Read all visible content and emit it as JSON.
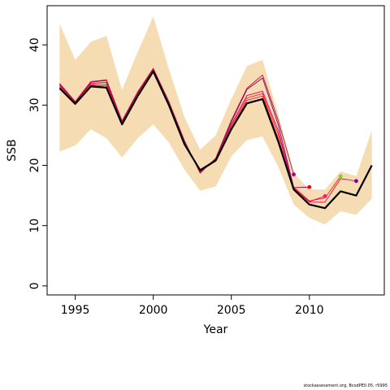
{
  "chart_data": {
    "type": "line",
    "title": "",
    "xlabel": "Year",
    "ylabel": "SSB",
    "xlim": [
      1993.2,
      2014.8
    ],
    "ylim": [
      -1.5,
      46.5
    ],
    "xticks": [
      1995,
      2000,
      2005,
      2010
    ],
    "yticks": [
      0,
      10,
      20,
      30,
      40
    ],
    "grid": false,
    "legend": "none",
    "colors": {
      "band": "#f5dcb3",
      "main": "#000000",
      "peel_lines": [
        "#f4004f",
        "#ff2200",
        "#d10070",
        "#7c0070",
        "#c01040"
      ],
      "peel_points": [
        "#b0008a",
        "#ff0000",
        "#ff1493",
        "#66dd22",
        "#7a00a0"
      ]
    },
    "band": {
      "name": "confidence interval",
      "x": [
        1994,
        1995,
        1996,
        1997,
        1998,
        1999,
        2000,
        2001,
        2002,
        2003,
        2004,
        2005,
        2006,
        2007,
        2008,
        2009,
        2010,
        2011,
        2012,
        2013,
        2014
      ],
      "upper": [
        43.5,
        37.5,
        40.5,
        41.5,
        32.5,
        38.8,
        44.7,
        36.0,
        28.0,
        22.6,
        25.0,
        31.0,
        36.5,
        37.5,
        28.5,
        18.7,
        16.0,
        16.0,
        19.0,
        18.2,
        25.8
      ],
      "lower": [
        22.3,
        23.3,
        26.0,
        24.5,
        21.3,
        24.5,
        26.8,
        23.8,
        19.3,
        15.8,
        16.5,
        21.5,
        24.2,
        24.8,
        19.8,
        13.5,
        11.3,
        10.2,
        12.4,
        11.8,
        14.5
      ]
    },
    "series": [
      {
        "x": [
          1994,
          1995,
          1996,
          1997,
          1998,
          1999,
          2000,
          2001,
          2002,
          2003,
          2004,
          2005,
          2006,
          2007,
          2008,
          2009,
          2010,
          2011,
          2012,
          2013,
          2014
        ],
        "values": [
          32.8,
          30.2,
          33.1,
          32.9,
          26.8,
          31.5,
          35.6,
          30.0,
          23.5,
          19.2,
          20.8,
          26.0,
          30.3,
          31.0,
          24.0,
          16.0,
          13.5,
          12.9,
          15.7,
          15.0,
          20.0
        ]
      },
      {
        "x": [
          1994,
          1995,
          1996,
          1997,
          1998,
          1999,
          2000,
          2001,
          2002,
          2003,
          2004,
          2005,
          2006,
          2007,
          2008,
          2009,
          2010,
          2011,
          2012,
          2013
        ],
        "values": [
          33.0,
          30.3,
          33.3,
          33.2,
          27.0,
          31.8,
          35.8,
          30.2,
          23.7,
          19.0,
          20.7,
          26.2,
          30.8,
          31.5,
          24.5,
          16.2,
          13.9,
          13.9,
          17.8,
          17.4
        ]
      },
      {
        "x": [
          1994,
          1995,
          1996,
          1997,
          1998,
          1999,
          2000,
          2001,
          2002,
          2003,
          2004,
          2005,
          2006,
          2007,
          2008,
          2009,
          2010,
          2011,
          2012
        ],
        "values": [
          33.1,
          30.4,
          33.4,
          33.5,
          27.1,
          31.9,
          35.9,
          30.3,
          23.8,
          19.1,
          20.9,
          26.5,
          31.2,
          31.9,
          25.2,
          16.4,
          14.1,
          14.6,
          18.2
        ]
      },
      {
        "x": [
          1994,
          1995,
          1996,
          1997,
          1998,
          1999,
          2000,
          2001,
          2002,
          2003,
          2004,
          2005,
          2006,
          2007,
          2008,
          2009,
          2010,
          2011
        ],
        "values": [
          33.3,
          30.5,
          33.6,
          33.8,
          27.2,
          32.0,
          36.0,
          30.4,
          23.9,
          18.9,
          21.0,
          26.8,
          31.6,
          32.3,
          25.8,
          16.2,
          14.0,
          14.9
        ]
      },
      {
        "x": [
          1994,
          1995,
          1996,
          1997,
          1998,
          1999,
          2000,
          2001,
          2002,
          2003,
          2004,
          2005,
          2006,
          2007,
          2008,
          2009,
          2010
        ],
        "values": [
          33.5,
          30.5,
          33.8,
          34.1,
          27.3,
          32.1,
          36.0,
          30.5,
          24.0,
          18.8,
          21.1,
          27.2,
          32.6,
          34.5,
          26.8,
          16.3,
          16.4
        ]
      },
      {
        "x": [
          1994,
          1995,
          1996,
          1997,
          1998,
          1999,
          2000,
          2001,
          2002,
          2003,
          2004,
          2005,
          2006,
          2007,
          2008,
          2009
        ],
        "values": [
          33.6,
          30.6,
          33.9,
          34.2,
          27.4,
          32.2,
          36.1,
          30.6,
          24.1,
          18.7,
          21.2,
          27.5,
          32.8,
          35.0,
          27.5,
          18.5
        ]
      }
    ],
    "endpoints": [
      {
        "x": 2009,
        "y": 18.5
      },
      {
        "x": 2010,
        "y": 16.4
      },
      {
        "x": 2011,
        "y": 14.9
      },
      {
        "x": 2012,
        "y": 18.2
      },
      {
        "x": 2013,
        "y": 17.4
      }
    ]
  },
  "footer": "stockassessment.org, BcodPE0.05, r5995"
}
